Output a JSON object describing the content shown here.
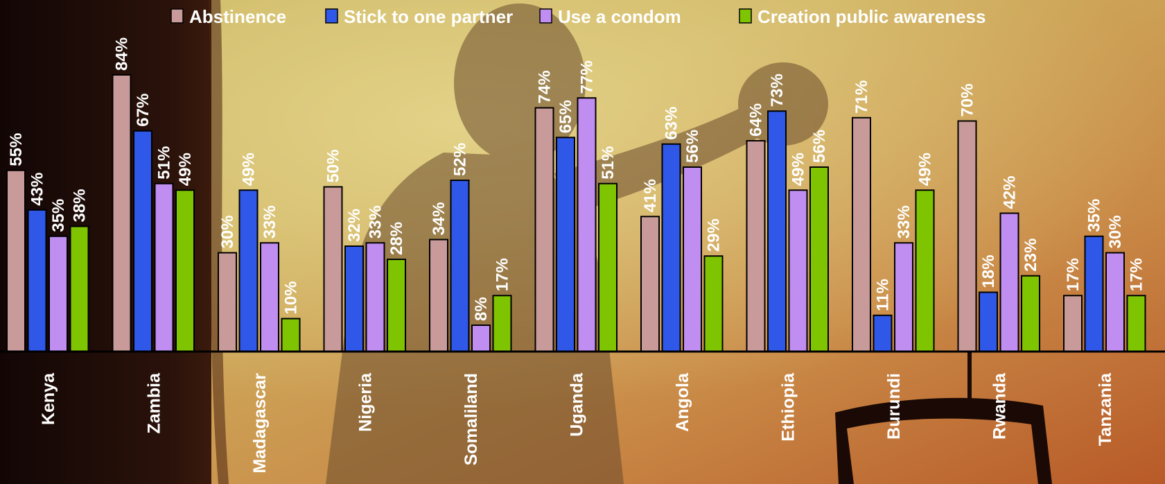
{
  "chart_data": {
    "type": "bar",
    "title": "",
    "xlabel": "",
    "ylabel": "",
    "ylim": [
      0,
      90
    ],
    "grid": false,
    "legend_position": "top",
    "categories": [
      "Kenya",
      "Zambia",
      "Madagascar",
      "Nigeria",
      "Somaliland",
      "Uganda",
      "Angola",
      "Ethiopia",
      "Burundi",
      "Rwanda",
      "Tanzania"
    ],
    "series": [
      {
        "name": "Abstinence",
        "color": "#c99a9a",
        "values": [
          55,
          84,
          30,
          50,
          34,
          74,
          41,
          64,
          71,
          70,
          17
        ]
      },
      {
        "name": "Stick to one partner",
        "color": "#2f57e8",
        "values": [
          43,
          67,
          49,
          32,
          52,
          65,
          63,
          73,
          11,
          18,
          35
        ]
      },
      {
        "name": "Use a condom",
        "color": "#bf8ef0",
        "values": [
          35,
          51,
          33,
          33,
          8,
          77,
          56,
          49,
          33,
          42,
          30
        ]
      },
      {
        "name": "Creation public awareness",
        "color": "#7fc400",
        "values": [
          38,
          49,
          10,
          28,
          17,
          51,
          29,
          56,
          49,
          23,
          17
        ]
      }
    ],
    "value_label_suffix": "%"
  }
}
